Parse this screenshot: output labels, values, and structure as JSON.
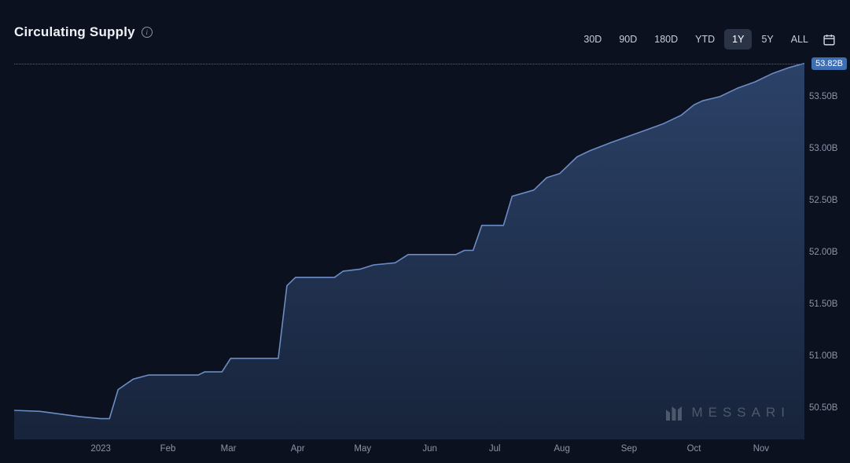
{
  "header": {
    "title": "Circulating Supply",
    "info_tooltip": "i"
  },
  "ranges": {
    "items": [
      {
        "label": "30D",
        "active": false
      },
      {
        "label": "90D",
        "active": false
      },
      {
        "label": "180D",
        "active": false
      },
      {
        "label": "YTD",
        "active": false
      },
      {
        "label": "1Y",
        "active": true
      },
      {
        "label": "5Y",
        "active": false
      },
      {
        "label": "ALL",
        "active": false
      }
    ]
  },
  "watermark": {
    "text": "MESSARI"
  },
  "chart": {
    "type": "area",
    "background_color": "#0c111f",
    "line_color": "#6b8cc4",
    "line_width": 1.6,
    "area_fill_top": "#2e466e",
    "area_fill_bottom": "#18253d",
    "area_opacity": 0.92,
    "grid_color": "#5a6170",
    "axis_label_color": "#8b94a7",
    "axis_fontsize": 11.5,
    "badge_bg": "#3e6fb3",
    "badge_fg": "#ffffff",
    "last_value_label": "53.82B",
    "y": {
      "min": 50.2,
      "max": 53.9,
      "ticks": [
        50.5,
        51.0,
        51.5,
        52.0,
        52.5,
        53.0,
        53.5
      ],
      "tick_labels": [
        "50.50B",
        "51.00B",
        "51.50B",
        "52.00B",
        "52.50B",
        "53.00B",
        "53.50B"
      ]
    },
    "x": {
      "min": 0,
      "max": 365,
      "ticks": [
        40,
        71,
        99,
        131,
        161,
        192,
        222,
        253,
        284,
        314,
        345
      ],
      "tick_labels": [
        "2023",
        "Feb",
        "Mar",
        "Apr",
        "May",
        "Jun",
        "Jul",
        "Aug",
        "Sep",
        "Oct",
        "Nov"
      ]
    },
    "series": [
      {
        "x": 0,
        "y": 50.48
      },
      {
        "x": 12,
        "y": 50.47
      },
      {
        "x": 30,
        "y": 50.42
      },
      {
        "x": 40,
        "y": 50.4
      },
      {
        "x": 44,
        "y": 50.4
      },
      {
        "x": 48,
        "y": 50.68
      },
      {
        "x": 55,
        "y": 50.78
      },
      {
        "x": 62,
        "y": 50.82
      },
      {
        "x": 85,
        "y": 50.82
      },
      {
        "x": 88,
        "y": 50.85
      },
      {
        "x": 96,
        "y": 50.85
      },
      {
        "x": 100,
        "y": 50.98
      },
      {
        "x": 118,
        "y": 50.98
      },
      {
        "x": 122,
        "y": 50.98
      },
      {
        "x": 126,
        "y": 51.68
      },
      {
        "x": 130,
        "y": 51.76
      },
      {
        "x": 148,
        "y": 51.76
      },
      {
        "x": 152,
        "y": 51.82
      },
      {
        "x": 160,
        "y": 51.84
      },
      {
        "x": 166,
        "y": 51.88
      },
      {
        "x": 176,
        "y": 51.9
      },
      {
        "x": 182,
        "y": 51.98
      },
      {
        "x": 204,
        "y": 51.98
      },
      {
        "x": 208,
        "y": 52.02
      },
      {
        "x": 212,
        "y": 52.02
      },
      {
        "x": 216,
        "y": 52.26
      },
      {
        "x": 226,
        "y": 52.26
      },
      {
        "x": 230,
        "y": 52.54
      },
      {
        "x": 240,
        "y": 52.6
      },
      {
        "x": 246,
        "y": 52.72
      },
      {
        "x": 252,
        "y": 52.76
      },
      {
        "x": 260,
        "y": 52.92
      },
      {
        "x": 266,
        "y": 52.98
      },
      {
        "x": 276,
        "y": 53.06
      },
      {
        "x": 284,
        "y": 53.12
      },
      {
        "x": 292,
        "y": 53.18
      },
      {
        "x": 300,
        "y": 53.24
      },
      {
        "x": 308,
        "y": 53.32
      },
      {
        "x": 314,
        "y": 53.42
      },
      {
        "x": 318,
        "y": 53.46
      },
      {
        "x": 326,
        "y": 53.5
      },
      {
        "x": 334,
        "y": 53.58
      },
      {
        "x": 342,
        "y": 53.64
      },
      {
        "x": 350,
        "y": 53.72
      },
      {
        "x": 358,
        "y": 53.78
      },
      {
        "x": 365,
        "y": 53.82
      }
    ]
  }
}
